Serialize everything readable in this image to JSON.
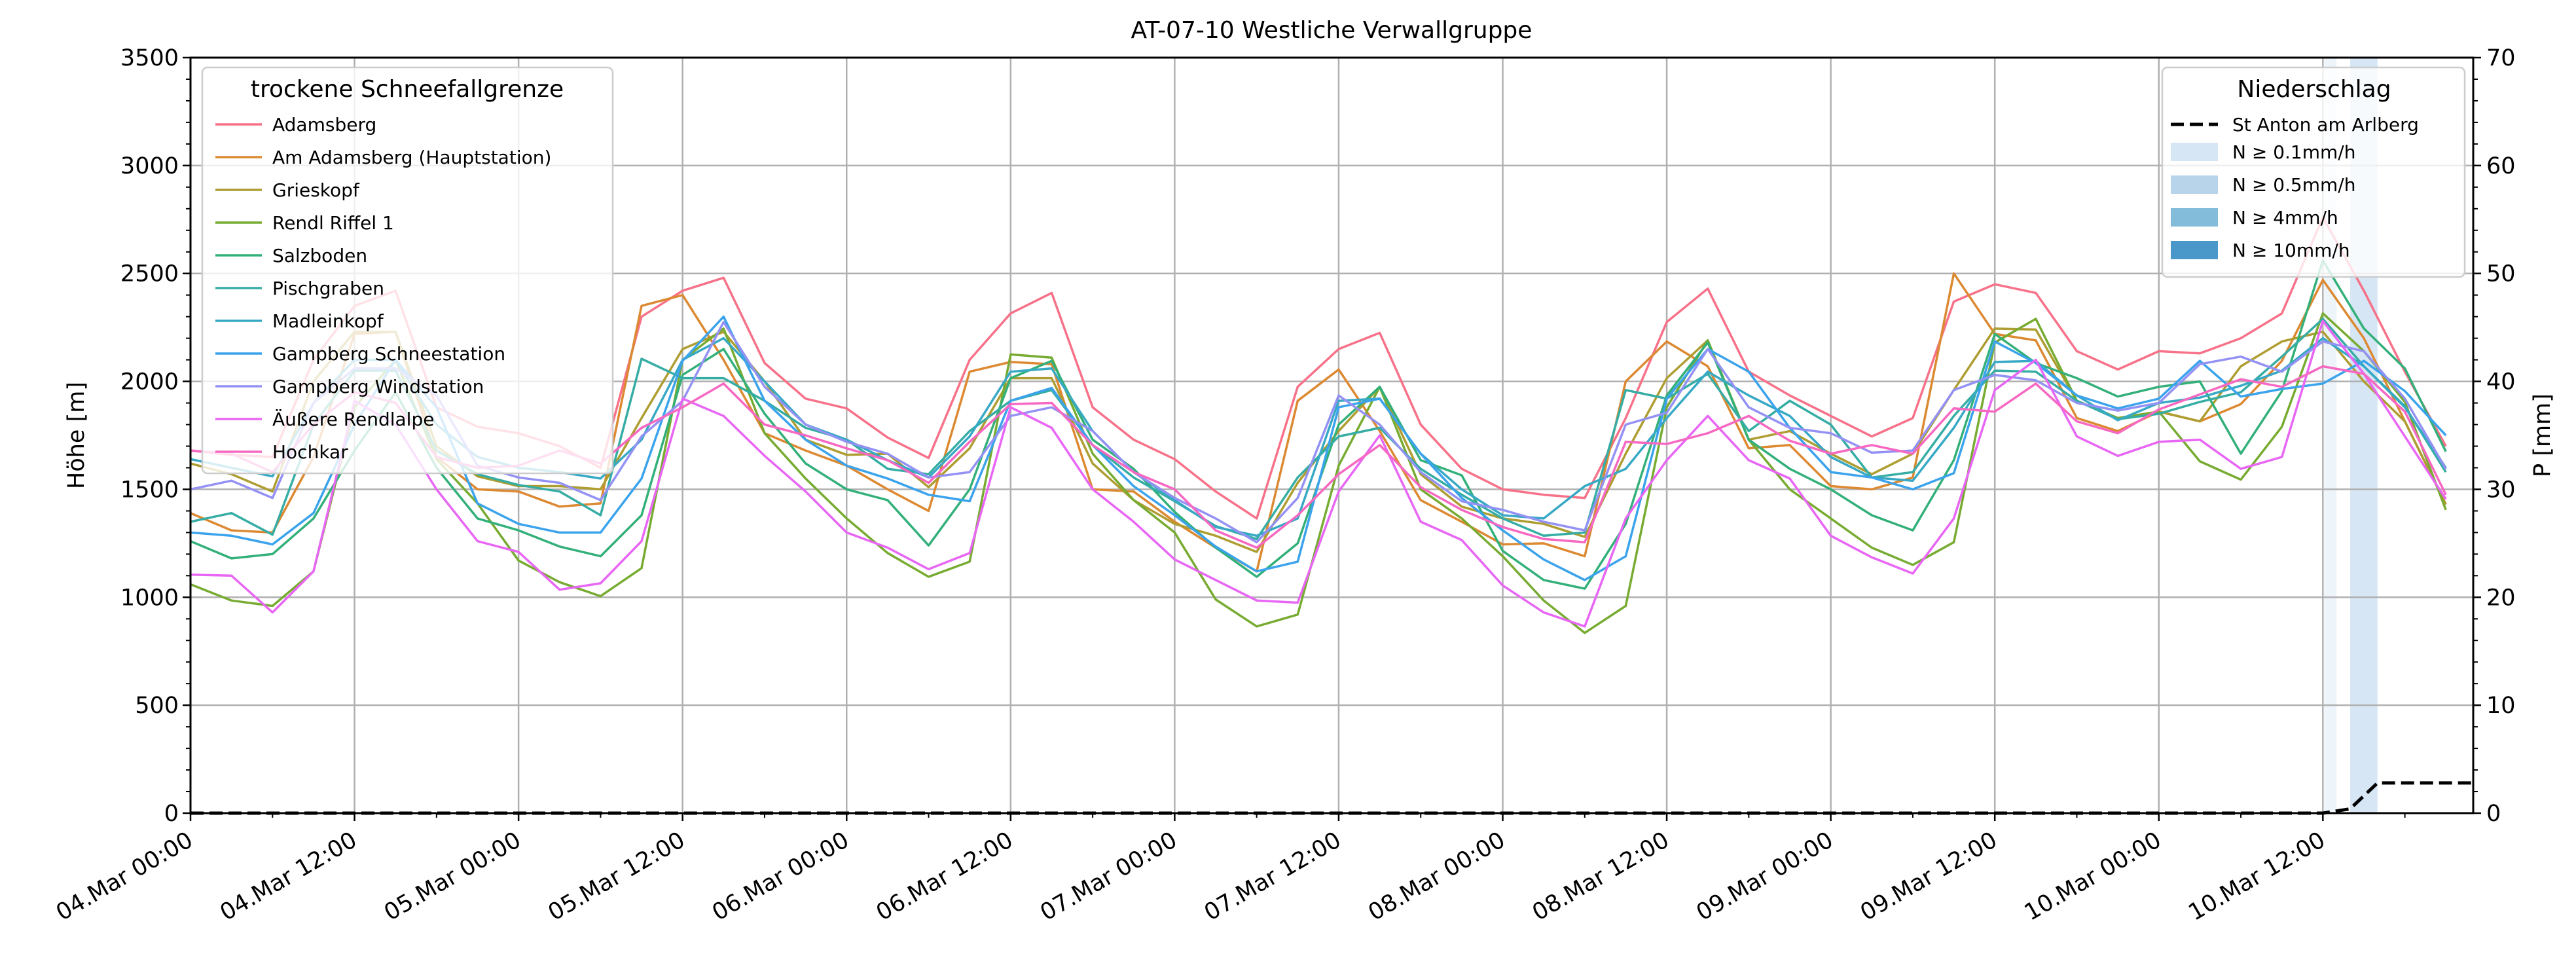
{
  "chart_data": {
    "type": "line",
    "title": "AT-07-10 Westliche Verwallgruppe",
    "ylabel": "Höhe [m]",
    "ylabel_right": "P [mm]",
    "xlabel": "",
    "xlim_hours": [
      0,
      167
    ],
    "ylim": [
      0,
      3500
    ],
    "ylim_right": [
      0,
      70
    ],
    "grid": true,
    "x_ticks": [
      "04.Mar 00:00",
      "04.Mar 12:00",
      "05.Mar 00:00",
      "05.Mar 12:00",
      "06.Mar 00:00",
      "06.Mar 12:00",
      "07.Mar 00:00",
      "07.Mar 12:00",
      "08.Mar 00:00",
      "08.Mar 12:00",
      "09.Mar 00:00",
      "09.Mar 12:00",
      "10.Mar 00:00",
      "10.Mar 12:00"
    ],
    "y_ticks": [
      "0",
      "500",
      "1000",
      "1500",
      "2000",
      "2500",
      "3000",
      "3500"
    ],
    "y_ticks_right": [
      "0",
      "10",
      "20",
      "30",
      "40",
      "50",
      "60",
      "70"
    ],
    "x_hours": [
      0,
      3,
      6,
      9,
      12,
      15,
      18,
      21,
      24,
      27,
      30,
      33,
      36,
      39,
      42,
      45,
      48,
      51,
      54,
      57,
      60,
      63,
      66,
      69,
      72,
      75,
      78,
      81,
      84,
      87,
      90,
      93,
      96,
      99,
      102,
      105,
      108,
      111,
      114,
      117,
      120,
      123,
      126,
      129,
      132,
      135,
      138,
      141,
      144,
      147,
      150,
      153,
      156,
      159,
      162,
      165
    ],
    "legend_left": {
      "title": "trockene Schneefallgrenze",
      "placement": "upper-left"
    },
    "legend_right": {
      "title": "Niederschlag",
      "placement": "upper-right"
    },
    "series": [
      {
        "name": "Adamsberg",
        "color": "#f77189",
        "values": [
          1680,
          1660,
          1650,
          2100,
          2350,
          2420,
          1880,
          1790,
          1760,
          1700,
          1600,
          2300,
          2420,
          2480,
          2085,
          1920,
          1875,
          1740,
          1645,
          2100,
          2315,
          2410,
          1880,
          1730,
          1640,
          1490,
          1365,
          1975,
          2150,
          2225,
          1800,
          1595,
          1500,
          1475,
          1460,
          1830,
          2275,
          2430,
          2045,
          1935,
          1840,
          1745,
          1830,
          2370,
          2450,
          2410,
          2140,
          2055,
          2140,
          2130,
          2200,
          2315,
          2760,
          2420,
          2045,
          1700
        ]
      },
      {
        "name": "Am Adamsberg (Hauptstation)",
        "color": "#dc8932",
        "values": [
          1390,
          1310,
          1300,
          1650,
          2220,
          2230,
          1650,
          1500,
          1490,
          1420,
          1435,
          2350,
          2400,
          2100,
          1760,
          1680,
          1610,
          1500,
          1400,
          2045,
          2090,
          2080,
          1500,
          1490,
          1350,
          1230,
          1120,
          1910,
          2055,
          1770,
          1450,
          1350,
          1245,
          1250,
          1190,
          2000,
          2185,
          2070,
          1690,
          1705,
          1515,
          1500,
          1555,
          2500,
          2220,
          2190,
          1830,
          1770,
          1860,
          1815,
          1895,
          2095,
          2470,
          2200,
          1815,
          1430
        ]
      },
      {
        "name": "Grieskopf",
        "color": "#ae9d31",
        "values": [
          1620,
          1570,
          1490,
          2000,
          2230,
          2230,
          1700,
          1560,
          1515,
          1515,
          1500,
          1830,
          2150,
          2230,
          2000,
          1730,
          1660,
          1665,
          1510,
          1690,
          2015,
          2015,
          1620,
          1450,
          1340,
          1285,
          1210,
          1530,
          1770,
          1975,
          1570,
          1420,
          1365,
          1340,
          1280,
          1665,
          2015,
          2190,
          1730,
          1770,
          1665,
          1570,
          1665,
          1960,
          2245,
          2240,
          1910,
          1830,
          1860,
          1815,
          2070,
          2185,
          2230,
          2000,
          1815,
          1430
        ]
      },
      {
        "name": "Rendl Riffel 1",
        "color": "#77ab31",
        "values": [
          1060,
          985,
          960,
          1120,
          1880,
          2100,
          1640,
          1435,
          1170,
          1070,
          1005,
          1135,
          2100,
          2245,
          1760,
          1550,
          1365,
          1205,
          1095,
          1165,
          2125,
          2110,
          1665,
          1450,
          1300,
          990,
          865,
          920,
          1610,
          1975,
          1500,
          1365,
          1190,
          985,
          835,
          960,
          1880,
          2190,
          1730,
          1500,
          1365,
          1230,
          1150,
          1255,
          2180,
          2290,
          1910,
          1830,
          1860,
          1630,
          1545,
          1790,
          2315,
          2140,
          1905,
          1405
        ]
      },
      {
        "name": "Salzboden",
        "color": "#33b07a",
        "values": [
          1260,
          1180,
          1200,
          1365,
          1680,
          1950,
          1600,
          1365,
          1310,
          1235,
          1190,
          1380,
          2030,
          2150,
          1850,
          1620,
          1500,
          1450,
          1240,
          1500,
          2015,
          2095,
          1730,
          1595,
          1395,
          1230,
          1095,
          1250,
          1800,
          1975,
          1635,
          1565,
          1215,
          1080,
          1040,
          1340,
          1935,
          2180,
          1730,
          1595,
          1500,
          1380,
          1310,
          1635,
          2220,
          2085,
          2015,
          1930,
          1975,
          2000,
          1665,
          1955,
          2560,
          2245,
          2060,
          1675
        ]
      },
      {
        "name": "Pischgraben",
        "color": "#36ada4",
        "values": [
          1350,
          1390,
          1290,
          1800,
          2050,
          2050,
          1680,
          1570,
          1520,
          1490,
          1380,
          2105,
          2015,
          2015,
          1910,
          1785,
          1730,
          1595,
          1570,
          1770,
          1910,
          1960,
          1705,
          1555,
          1445,
          1330,
          1270,
          1555,
          1745,
          1785,
          1595,
          1475,
          1365,
          1285,
          1300,
          1960,
          1920,
          2035,
          1770,
          1910,
          1800,
          1555,
          1580,
          1840,
          2050,
          2045,
          1910,
          1825,
          1850,
          1905,
          1950,
          2115,
          2290,
          2070,
          1885,
          1580
        ]
      },
      {
        "name": "Madleinkopf",
        "color": "#38a9c5",
        "values": [
          1640,
          1600,
          1560,
          1900,
          2100,
          2100,
          1800,
          1650,
          1600,
          1580,
          1550,
          1730,
          2100,
          2200,
          2000,
          1800,
          1730,
          1635,
          1555,
          1745,
          2045,
          2060,
          1770,
          1580,
          1450,
          1325,
          1285,
          1365,
          1910,
          1920,
          1665,
          1500,
          1380,
          1365,
          1515,
          1595,
          1830,
          2045,
          1935,
          1840,
          1650,
          1555,
          1540,
          1785,
          2090,
          2095,
          1935,
          1820,
          1900,
          1925,
          1980,
          2050,
          2200,
          2070,
          1880,
          1600
        ]
      },
      {
        "name": "Gampberg Schneestation",
        "color": "#3ba3ec",
        "values": [
          1300,
          1285,
          1245,
          1390,
          1800,
          2100,
          1880,
          1435,
          1340,
          1300,
          1300,
          1550,
          2095,
          2300,
          1910,
          1730,
          1610,
          1550,
          1475,
          1445,
          1910,
          1970,
          1705,
          1515,
          1380,
          1235,
          1120,
          1165,
          1880,
          1920,
          1665,
          1460,
          1310,
          1175,
          1080,
          1190,
          1920,
          2150,
          2045,
          1785,
          1580,
          1555,
          1500,
          1575,
          2185,
          2085,
          1935,
          1875,
          1920,
          2095,
          1930,
          1965,
          1990,
          2095,
          1955,
          1750
        ]
      },
      {
        "name": "Gampberg Windstation",
        "color": "#9491f4",
        "values": [
          1500,
          1540,
          1460,
          1900,
          2060,
          2060,
          1935,
          1610,
          1555,
          1530,
          1450,
          1745,
          1910,
          2275,
          1975,
          1800,
          1720,
          1665,
          1555,
          1580,
          1840,
          1880,
          1770,
          1580,
          1460,
          1365,
          1255,
          1460,
          1935,
          1800,
          1580,
          1445,
          1405,
          1350,
          1310,
          1800,
          1855,
          2150,
          1880,
          1785,
          1760,
          1670,
          1680,
          1960,
          2030,
          2005,
          1900,
          1865,
          1900,
          2080,
          2115,
          2045,
          2185,
          2140,
          1920,
          1595
        ]
      },
      {
        "name": "Äußere Rendlalpe",
        "color": "#e866f4",
        "values": [
          1105,
          1100,
          930,
          1120,
          1910,
          1800,
          1500,
          1260,
          1210,
          1035,
          1065,
          1260,
          1920,
          1840,
          1655,
          1490,
          1300,
          1230,
          1130,
          1205,
          1880,
          1785,
          1500,
          1350,
          1175,
          1080,
          985,
          975,
          1490,
          1750,
          1350,
          1265,
          1055,
          930,
          865,
          1365,
          1635,
          1840,
          1635,
          1550,
          1285,
          1185,
          1110,
          1365,
          1960,
          2100,
          1745,
          1655,
          1720,
          1730,
          1595,
          1650,
          2280,
          2035,
          1745,
          1455
        ]
      },
      {
        "name": "Hochkar",
        "color": "#f668c2",
        "values": [
          1680,
          1665,
          1580,
          1800,
          1950,
          1900,
          1650,
          1600,
          1610,
          1680,
          1620,
          1785,
          1880,
          1990,
          1800,
          1750,
          1690,
          1635,
          1530,
          1720,
          1895,
          1900,
          1705,
          1580,
          1500,
          1310,
          1230,
          1380,
          1570,
          1705,
          1510,
          1405,
          1325,
          1270,
          1255,
          1720,
          1710,
          1760,
          1840,
          1725,
          1665,
          1705,
          1665,
          1875,
          1860,
          1990,
          1815,
          1760,
          1870,
          1940,
          2010,
          1975,
          2070,
          2035,
          1860,
          1475
        ]
      }
    ],
    "precip_series": {
      "name": "St Anton am Arlberg",
      "color": "#000000",
      "style": "dashed",
      "x_hours": [
        0,
        156,
        158,
        160,
        167
      ],
      "values_mm": [
        0,
        0,
        0.4,
        2.8,
        2.8
      ]
    },
    "precip_classes": [
      {
        "label": "N ≥ 0.1mm/h",
        "color": "#d6e6f4"
      },
      {
        "label": "N ≥ 0.5mm/h",
        "color": "#b7d4ea"
      },
      {
        "label": "N ≥ 4mm/h",
        "color": "#83bbdb"
      },
      {
        "label": "N ≥ 10mm/h",
        "color": "#4a98c9"
      }
    ],
    "precip_bands": [
      {
        "class": 0,
        "start_hour": 156.1,
        "end_hour": 157.0,
        "opacity": 0.45
      },
      {
        "class": 0,
        "start_hour": 158.0,
        "end_hour": 160.0,
        "opacity": 1
      }
    ]
  }
}
